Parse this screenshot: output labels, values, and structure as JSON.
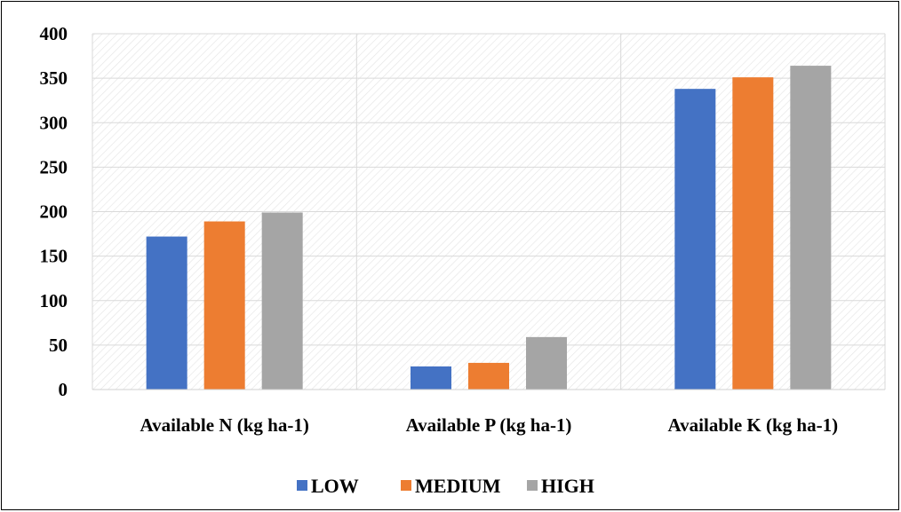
{
  "chart_data": {
    "type": "bar",
    "categories": [
      "Available N (kg ha-1)",
      "Available P (kg ha-1)",
      "Available K (kg ha-1)"
    ],
    "series": [
      {
        "name": "LOW",
        "values": [
          172,
          26,
          338
        ],
        "color": "#4472C4"
      },
      {
        "name": "MEDIUM",
        "values": [
          189,
          30,
          351
        ],
        "color": "#ED7D31"
      },
      {
        "name": "HIGH",
        "values": [
          199,
          59,
          364
        ],
        "color": "#A5A5A5"
      }
    ],
    "title": "",
    "xlabel": "",
    "ylabel": "",
    "ylim": [
      0,
      400
    ],
    "yticks": [
      "0",
      "50",
      "100",
      "150",
      "200",
      "250",
      "300",
      "350",
      "400"
    ],
    "grid": true,
    "legend_position": "bottom"
  }
}
